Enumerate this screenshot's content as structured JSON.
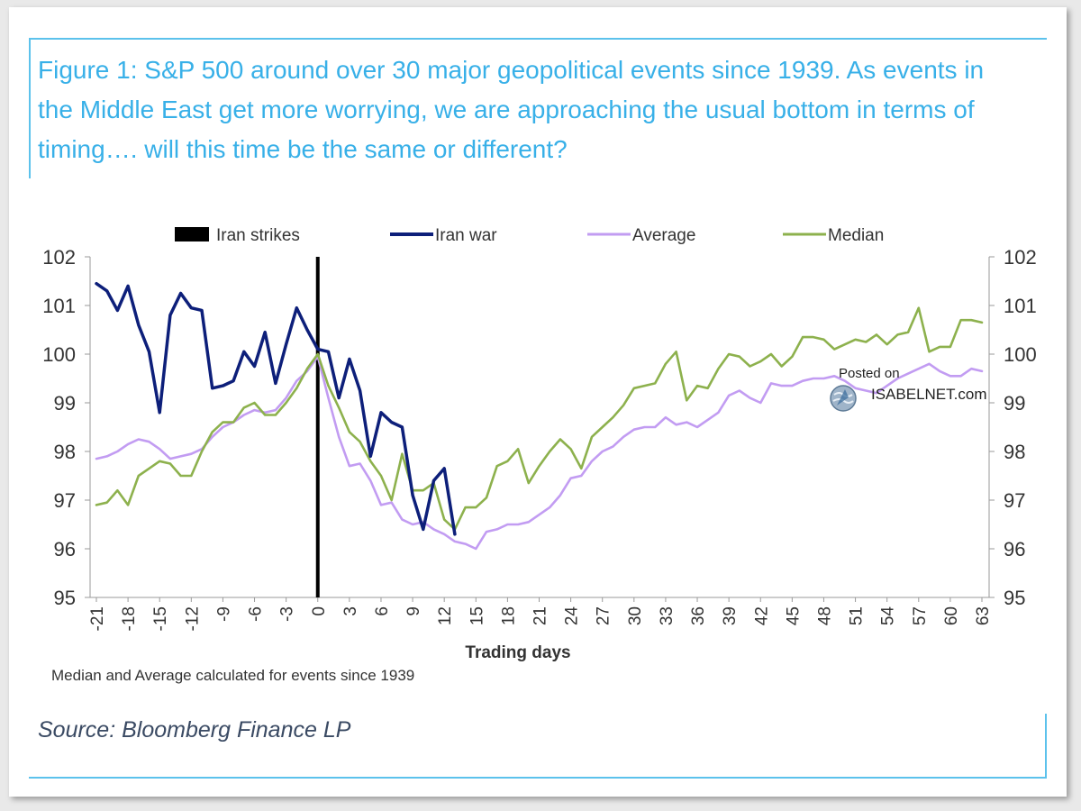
{
  "title": "Figure 1: S&P 500 around over 30 major geopolitical events since 1939. As events in the Middle East get more worrying, we are approaching the usual bottom in terms of timing…. will this time be the same or different?",
  "footnote": "Median and Average calculated for events since 1939",
  "source": "Source: Bloomberg Finance LP",
  "watermark": {
    "line1": "Posted on",
    "line2": "ISABELNET.com",
    "icon": "globe-icon"
  },
  "colors": {
    "title": "#38b0e8",
    "strikes": "#000000",
    "iran_war": "#0d1f7a",
    "average": "#c29cf2",
    "median": "#8db14d"
  },
  "chart_data": {
    "type": "line",
    "title": "",
    "xlabel": "Trading days",
    "ylabel": "",
    "xlim": [
      -21,
      63
    ],
    "ylim": [
      95,
      102
    ],
    "x_ticks": [
      -21,
      -18,
      -15,
      -12,
      -9,
      -6,
      -3,
      0,
      3,
      6,
      9,
      12,
      15,
      18,
      21,
      24,
      27,
      30,
      33,
      36,
      39,
      42,
      45,
      48,
      51,
      54,
      57,
      60,
      63
    ],
    "y_ticks": [
      95,
      96,
      97,
      98,
      99,
      100,
      101,
      102
    ],
    "legend_position": "top",
    "legend": [
      "Iran strikes",
      "Iran war",
      "Average",
      "Median"
    ],
    "event_marker": {
      "name": "Iran strikes",
      "x": 0
    },
    "series": [
      {
        "name": "Iran war",
        "points": [
          [
            -21,
            101.45
          ],
          [
            -20,
            101.3
          ],
          [
            -19,
            100.9
          ],
          [
            -18,
            101.4
          ],
          [
            -17,
            100.6
          ],
          [
            -16,
            100.05
          ],
          [
            -15,
            98.8
          ],
          [
            -14,
            100.8
          ],
          [
            -13,
            101.25
          ],
          [
            -12,
            100.95
          ],
          [
            -11,
            100.9
          ],
          [
            -10,
            99.3
          ],
          [
            -9,
            99.35
          ],
          [
            -8,
            99.45
          ],
          [
            -7,
            100.05
          ],
          [
            -6,
            99.75
          ],
          [
            -5,
            100.45
          ],
          [
            -4,
            99.4
          ],
          [
            -3,
            100.2
          ],
          [
            -2,
            100.95
          ],
          [
            -1,
            100.5
          ],
          [
            0,
            100.1
          ],
          [
            1,
            100.05
          ],
          [
            2,
            99.1
          ],
          [
            3,
            99.9
          ],
          [
            4,
            99.25
          ],
          [
            5,
            97.9
          ],
          [
            6,
            98.8
          ],
          [
            7,
            98.6
          ],
          [
            8,
            98.5
          ],
          [
            9,
            97.1
          ],
          [
            10,
            96.4
          ],
          [
            11,
            97.4
          ],
          [
            12,
            97.65
          ],
          [
            13,
            96.3
          ]
        ]
      },
      {
        "name": "Average",
        "points": [
          [
            -21,
            97.85
          ],
          [
            -20,
            97.9
          ],
          [
            -19,
            98.0
          ],
          [
            -18,
            98.15
          ],
          [
            -17,
            98.25
          ],
          [
            -16,
            98.2
          ],
          [
            -15,
            98.05
          ],
          [
            -14,
            97.85
          ],
          [
            -13,
            97.9
          ],
          [
            -12,
            97.95
          ],
          [
            -11,
            98.05
          ],
          [
            -10,
            98.3
          ],
          [
            -9,
            98.5
          ],
          [
            -8,
            98.6
          ],
          [
            -7,
            98.75
          ],
          [
            -6,
            98.85
          ],
          [
            -5,
            98.8
          ],
          [
            -4,
            98.85
          ],
          [
            -3,
            99.1
          ],
          [
            -2,
            99.45
          ],
          [
            -1,
            99.65
          ],
          [
            0,
            99.95
          ],
          [
            1,
            99.1
          ],
          [
            2,
            98.3
          ],
          [
            3,
            97.7
          ],
          [
            4,
            97.75
          ],
          [
            5,
            97.4
          ],
          [
            6,
            96.9
          ],
          [
            7,
            96.95
          ],
          [
            8,
            96.6
          ],
          [
            9,
            96.5
          ],
          [
            10,
            96.55
          ],
          [
            11,
            96.4
          ],
          [
            12,
            96.3
          ],
          [
            13,
            96.15
          ],
          [
            14,
            96.1
          ],
          [
            15,
            96.0
          ],
          [
            16,
            96.35
          ],
          [
            17,
            96.4
          ],
          [
            18,
            96.5
          ],
          [
            19,
            96.5
          ],
          [
            20,
            96.55
          ],
          [
            21,
            96.7
          ],
          [
            22,
            96.85
          ],
          [
            23,
            97.1
          ],
          [
            24,
            97.45
          ],
          [
            25,
            97.5
          ],
          [
            26,
            97.8
          ],
          [
            27,
            98.0
          ],
          [
            28,
            98.1
          ],
          [
            29,
            98.3
          ],
          [
            30,
            98.45
          ],
          [
            31,
            98.5
          ],
          [
            32,
            98.5
          ],
          [
            33,
            98.7
          ],
          [
            34,
            98.55
          ],
          [
            35,
            98.6
          ],
          [
            36,
            98.5
          ],
          [
            37,
            98.65
          ],
          [
            38,
            98.8
          ],
          [
            39,
            99.15
          ],
          [
            40,
            99.25
          ],
          [
            41,
            99.1
          ],
          [
            42,
            99.0
          ],
          [
            43,
            99.4
          ],
          [
            44,
            99.35
          ],
          [
            45,
            99.35
          ],
          [
            46,
            99.45
          ],
          [
            47,
            99.5
          ],
          [
            48,
            99.5
          ],
          [
            49,
            99.55
          ],
          [
            50,
            99.45
          ],
          [
            51,
            99.3
          ],
          [
            52,
            99.25
          ],
          [
            53,
            99.2
          ],
          [
            54,
            99.35
          ],
          [
            55,
            99.5
          ],
          [
            56,
            99.6
          ],
          [
            57,
            99.7
          ],
          [
            58,
            99.8
          ],
          [
            59,
            99.65
          ],
          [
            60,
            99.55
          ],
          [
            61,
            99.55
          ],
          [
            62,
            99.7
          ],
          [
            63,
            99.65
          ]
        ]
      },
      {
        "name": "Median",
        "points": [
          [
            -21,
            96.9
          ],
          [
            -20,
            96.95
          ],
          [
            -19,
            97.2
          ],
          [
            -18,
            96.9
          ],
          [
            -17,
            97.5
          ],
          [
            -16,
            97.65
          ],
          [
            -15,
            97.8
          ],
          [
            -14,
            97.75
          ],
          [
            -13,
            97.5
          ],
          [
            -12,
            97.5
          ],
          [
            -11,
            98.0
          ],
          [
            -10,
            98.4
          ],
          [
            -9,
            98.6
          ],
          [
            -8,
            98.6
          ],
          [
            -7,
            98.9
          ],
          [
            -6,
            99.0
          ],
          [
            -5,
            98.75
          ],
          [
            -4,
            98.75
          ],
          [
            -3,
            99.0
          ],
          [
            -2,
            99.3
          ],
          [
            -1,
            99.7
          ],
          [
            0,
            100.0
          ],
          [
            1,
            99.35
          ],
          [
            2,
            98.9
          ],
          [
            3,
            98.4
          ],
          [
            4,
            98.2
          ],
          [
            5,
            97.8
          ],
          [
            6,
            97.5
          ],
          [
            7,
            97.0
          ],
          [
            8,
            97.95
          ],
          [
            9,
            97.2
          ],
          [
            10,
            97.2
          ],
          [
            11,
            97.35
          ],
          [
            12,
            96.6
          ],
          [
            13,
            96.4
          ],
          [
            14,
            96.85
          ],
          [
            15,
            96.85
          ],
          [
            16,
            97.05
          ],
          [
            17,
            97.7
          ],
          [
            18,
            97.8
          ],
          [
            19,
            98.05
          ],
          [
            20,
            97.35
          ],
          [
            21,
            97.7
          ],
          [
            22,
            98.0
          ],
          [
            23,
            98.25
          ],
          [
            24,
            98.05
          ],
          [
            25,
            97.65
          ],
          [
            26,
            98.3
          ],
          [
            27,
            98.5
          ],
          [
            28,
            98.7
          ],
          [
            29,
            98.95
          ],
          [
            30,
            99.3
          ],
          [
            31,
            99.35
          ],
          [
            32,
            99.4
          ],
          [
            33,
            99.8
          ],
          [
            34,
            100.05
          ],
          [
            35,
            99.05
          ],
          [
            36,
            99.35
          ],
          [
            37,
            99.3
          ],
          [
            38,
            99.7
          ],
          [
            39,
            100.0
          ],
          [
            40,
            99.95
          ],
          [
            41,
            99.75
          ],
          [
            42,
            99.85
          ],
          [
            43,
            100.0
          ],
          [
            44,
            99.75
          ],
          [
            45,
            99.95
          ],
          [
            46,
            100.35
          ],
          [
            47,
            100.35
          ],
          [
            48,
            100.3
          ],
          [
            49,
            100.1
          ],
          [
            50,
            100.2
          ],
          [
            51,
            100.3
          ],
          [
            52,
            100.25
          ],
          [
            53,
            100.4
          ],
          [
            54,
            100.2
          ],
          [
            55,
            100.4
          ],
          [
            56,
            100.45
          ],
          [
            57,
            100.95
          ],
          [
            58,
            100.05
          ],
          [
            59,
            100.15
          ],
          [
            60,
            100.15
          ],
          [
            61,
            100.7
          ],
          [
            62,
            100.7
          ],
          [
            63,
            100.65
          ]
        ]
      }
    ]
  }
}
